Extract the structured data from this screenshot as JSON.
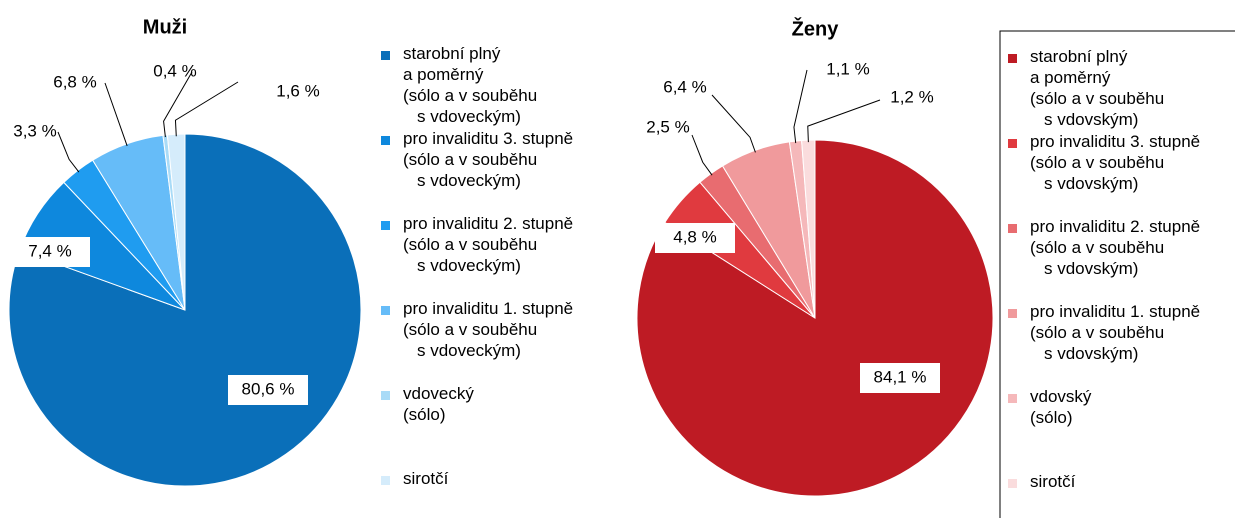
{
  "chart_data": [
    {
      "type": "pie",
      "title": "Muži",
      "labels": [
        [
          "starobní plný",
          "a poměrný",
          "(sólo a v souběhu",
          "s vdoveckým)"
        ],
        [
          "pro invaliditu 3. stupně",
          "(sólo a v souběhu",
          "s vdoveckým)"
        ],
        [
          "pro invaliditu 2. stupně",
          "(sólo a v souběhu",
          "s vdoveckým)"
        ],
        [
          "pro invaliditu 1. stupně",
          "(sólo a v souběhu",
          "s vdoveckým)"
        ],
        [
          "vdovecký",
          "(sólo)"
        ],
        [
          "sirotčí"
        ]
      ],
      "values": [
        80.6,
        7.4,
        3.3,
        6.8,
        0.4,
        1.6
      ],
      "value_labels": [
        "80,6 %",
        "7,4 %",
        "3,3 %",
        "6,8 %",
        "0,4 %",
        "1,6 %"
      ],
      "colors": [
        "#0a6fb9",
        "#0e88dd",
        "#1f9cf0",
        "#66bcf8",
        "#a9dbf7",
        "#d5ecfb"
      ]
    },
    {
      "type": "pie",
      "title": "Ženy",
      "labels": [
        [
          "starobní plný",
          "a poměrný",
          "(sólo a v souběhu",
          "s vdovským)"
        ],
        [
          "pro invaliditu 3. stupně",
          "(sólo a v souběhu",
          "s vdovským)"
        ],
        [
          "pro invaliditu 2. stupně",
          "(sólo a v souběhu",
          "s vdovským)"
        ],
        [
          "pro invaliditu 1. stupně",
          "(sólo a v souběhu",
          "s vdovským)"
        ],
        [
          "vdovský",
          "(sólo)"
        ],
        [
          "sirotčí"
        ]
      ],
      "values": [
        84.1,
        4.8,
        2.5,
        6.4,
        1.1,
        1.2
      ],
      "value_labels": [
        "84,1 %",
        "4,8 %",
        "2,5 %",
        "6,4 %",
        "1,1 %",
        "1,2 %"
      ],
      "colors": [
        "#be1b24",
        "#e03a3f",
        "#e86c70",
        "#f09a9c",
        "#f5b8ba",
        "#fadcdd"
      ]
    }
  ]
}
